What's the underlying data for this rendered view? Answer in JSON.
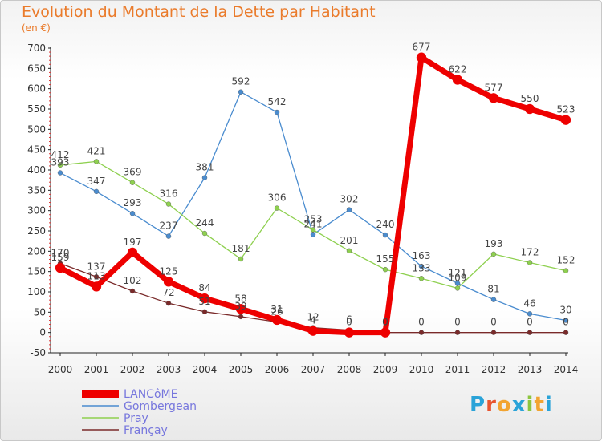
{
  "header": {
    "title": "Evolution du Montant de la Dette par Habitant",
    "subtitle": "(en €)"
  },
  "logo": {
    "text": "Proxiti",
    "letter_colors": [
      "#2aa3d8",
      "#e8542f",
      "#f2a431",
      "#2aa3d8",
      "#8cc63f",
      "#f2a431",
      "#2aa3d8"
    ]
  },
  "chart_data": {
    "type": "line",
    "title": "Evolution du Montant de la Dette par Habitant",
    "subtitle": "(en €)",
    "x": [
      "2000",
      "2001",
      "2002",
      "2003",
      "2004",
      "2005",
      "2006",
      "2007",
      "2008",
      "2009",
      "2010",
      "2011",
      "2012",
      "2013",
      "2014"
    ],
    "ylim": [
      -50,
      700
    ],
    "yticks": [
      -50,
      0,
      50,
      100,
      150,
      200,
      250,
      300,
      350,
      400,
      450,
      500,
      550,
      600,
      650,
      700
    ],
    "grid": false,
    "legend": "bottom-left",
    "series": [
      {
        "name": "Gombergean",
        "color": "#4a8ccf",
        "values": [
          393,
          347,
          293,
          237,
          381,
          592,
          542,
          241,
          302,
          240,
          163,
          121,
          81,
          46,
          30
        ],
        "labels": [
          "393",
          "347",
          "293",
          "237",
          "381",
          "592",
          "542",
          "241",
          "302",
          "240",
          "163",
          "121",
          "81",
          "46",
          "30"
        ]
      },
      {
        "name": "Pray",
        "color": "#8ed04f",
        "values": [
          412,
          421,
          369,
          316,
          244,
          181,
          306,
          253,
          201,
          155,
          133,
          109,
          193,
          172,
          152
        ],
        "labels": [
          "412",
          "421",
          "369",
          "316",
          "244",
          "181",
          "306",
          "253",
          "201",
          "155",
          "133",
          "109",
          "193",
          "172",
          "152"
        ]
      },
      {
        "name": "Françay",
        "color": "#7a2a2a",
        "values": [
          170,
          137,
          102,
          72,
          51,
          39,
          26,
          12,
          6,
          0,
          0,
          0,
          0,
          0,
          0
        ],
        "labels": [
          "170",
          "137",
          "102",
          "72",
          "51",
          "39",
          "26",
          "12",
          "6",
          "0",
          "0",
          "0",
          "0",
          "0",
          "0"
        ]
      },
      {
        "name": "LANCôME",
        "color": "#ee0000",
        "values": [
          159,
          113,
          197,
          125,
          84,
          58,
          31,
          4,
          0,
          0,
          677,
          622,
          577,
          550,
          523
        ],
        "labels": [
          "159",
          "113",
          "197",
          "125",
          "84",
          "58",
          "31",
          "4",
          "0",
          "0",
          "677",
          "622",
          "577",
          "550",
          "523"
        ]
      }
    ],
    "legend_order": [
      "LANCôME",
      "Gombergean",
      "Pray",
      "Françay"
    ]
  }
}
